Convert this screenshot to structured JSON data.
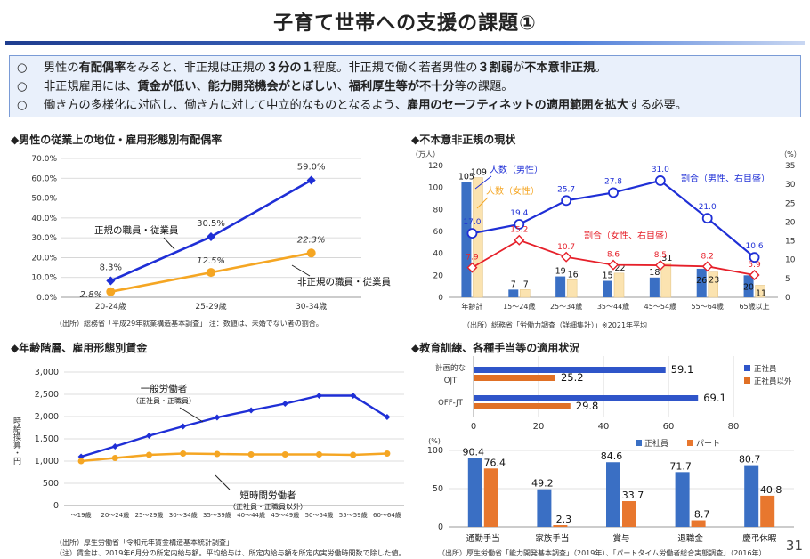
{
  "page": {
    "title": "子育て世帯への支援の課題①",
    "page_number": "31"
  },
  "summary": {
    "bullet": "○",
    "line1": [
      {
        "t": "男性の",
        "b": false
      },
      {
        "t": "有配偶率",
        "b": true
      },
      {
        "t": "をみると、非正規は正規の",
        "b": false
      },
      {
        "t": "３分の１",
        "b": true
      },
      {
        "t": "程度。非正規で働く若者男性の",
        "b": false
      },
      {
        "t": "３割弱",
        "b": true
      },
      {
        "t": "が",
        "b": false
      },
      {
        "t": "不本意非正規",
        "b": true
      },
      {
        "t": "。",
        "b": false
      }
    ],
    "line2": [
      {
        "t": "非正規雇用には、",
        "b": false
      },
      {
        "t": "賃金が低い",
        "b": true
      },
      {
        "t": "、",
        "b": false
      },
      {
        "t": "能力開発機会がとぼしい",
        "b": true
      },
      {
        "t": "、",
        "b": false
      },
      {
        "t": "福利厚生等が不十分",
        "b": true
      },
      {
        "t": "等の課題。",
        "b": false
      }
    ],
    "line3": [
      {
        "t": "働き方の多様化に対応し、働き方に対して中立的なものとなるよう、",
        "b": false
      },
      {
        "t": "雇用のセーフティネットの適用範囲を拡大",
        "b": true
      },
      {
        "t": "する必要。",
        "b": false
      }
    ]
  },
  "sections": {
    "marriage": {
      "heading": "◆男性の従業上の地位・雇用形態別有配偶率",
      "source": "（出所）総務省「平成29年就業構造基本調査」 注：数値は、未婚でない者の割合。"
    },
    "involuntary": {
      "heading": "◆不本意非正規の現状",
      "source": "（出所）総務省「労働力調査（詳細集計）」※2021年平均"
    },
    "wages": {
      "heading": "◆年齢階層、雇用形態別賃金",
      "source1": "（出所）厚生労働省「令和元年賃金構造基本統計調査」",
      "source2": "（注）賃金は、2019年6月分の所定内給与額。平均給与は、所定内給与額を所定内実労働時間数で除した値。"
    },
    "training": {
      "heading": "◆教育訓練、各種手当等の適用状況",
      "source": "（出所）厚生労働省「能力開発基本調査」（2019年）、「パートタイム労働者総合実態調査」（2016年）"
    }
  },
  "chart_data": [
    {
      "type": "line",
      "id": "marriage_rate",
      "categories": [
        "20-24歳",
        "25-29歳",
        "30-34歳"
      ],
      "ylim": [
        0,
        70
      ],
      "yticks": [
        "0.0%",
        "10.0%",
        "20.0%",
        "30.0%",
        "40.0%",
        "50.0%",
        "60.0%",
        "70.0%"
      ],
      "series": [
        {
          "name": "正規の職員・従業員",
          "values": [
            8.3,
            30.5,
            59.0
          ],
          "labels": [
            "8.3%",
            "30.5%",
            "59.0%"
          ],
          "color": "#1f2fd6"
        },
        {
          "name": "非正規の職員・従業員",
          "values": [
            2.8,
            12.5,
            22.3
          ],
          "labels": [
            "2.8%",
            "12.5%",
            "22.3%"
          ],
          "color": "#f5a623"
        }
      ]
    },
    {
      "type": "bar",
      "id": "involuntary_nonregular",
      "y_unit_left": "（万人）",
      "y_unit_right": "（%）",
      "categories": [
        "年齢計",
        "15～24歳",
        "25～34歳",
        "35～44歳",
        "45～54歳",
        "55～64歳",
        "65歳以上"
      ],
      "ylim_left": [
        0,
        120
      ],
      "yticks_left": [
        "0",
        "20",
        "40",
        "60",
        "80",
        "100",
        "120"
      ],
      "ylim_right": [
        0,
        35
      ],
      "yticks_right": [
        "0",
        "5",
        "10",
        "15",
        "20",
        "25",
        "30",
        "35"
      ],
      "series": [
        {
          "name": "人数（男性）",
          "axis": "left",
          "kind": "bar",
          "values": [
            105,
            7,
            19,
            15,
            18,
            26,
            20
          ],
          "labels": [
            "105",
            "7",
            "19",
            "15",
            "18",
            "26",
            "20"
          ],
          "color": "#3a6fc4"
        },
        {
          "name": "人数（女性）",
          "axis": "left",
          "kind": "bar",
          "values": [
            109,
            7,
            16,
            22,
            31,
            23,
            11
          ],
          "labels": [
            "109",
            "7",
            "16",
            "22",
            "31",
            "23",
            "11"
          ],
          "color": "#fbe3b0"
        },
        {
          "name": "割合（男性、右目盛）",
          "axis": "right",
          "kind": "line",
          "values": [
            17.0,
            19.4,
            25.7,
            27.8,
            31.0,
            21.0,
            10.6
          ],
          "labels": [
            "17.0",
            "19.4",
            "25.7",
            "27.8",
            "31.0",
            "21.0",
            "10.6"
          ],
          "color": "#1f2fd6"
        },
        {
          "name": "割合（女性、右目盛）",
          "axis": "right",
          "kind": "line",
          "values": [
            7.9,
            15.2,
            10.7,
            8.6,
            8.5,
            8.2,
            5.9
          ],
          "labels": [
            "7.9",
            "15.2",
            "10.7",
            "8.6",
            "8.5",
            "8.2",
            "5.9"
          ],
          "color": "#e6202a"
        }
      ]
    },
    {
      "type": "line",
      "id": "wages",
      "ylabel": "時給換算・円",
      "categories": [
        "～19歳",
        "20～24歳",
        "25～29歳",
        "30～34歳",
        "35～39歳",
        "40～44歳",
        "45～49歳",
        "50～54歳",
        "55～59歳",
        "60～64歳"
      ],
      "ylim": [
        0,
        3000
      ],
      "yticks": [
        "0",
        "500",
        "1,000",
        "1,500",
        "2,000",
        "2,500",
        "3,000"
      ],
      "series": [
        {
          "name": "一般労働者",
          "note": "（正社員・正職員）",
          "values": [
            1100,
            1330,
            1570,
            1780,
            1980,
            2140,
            2290,
            2470,
            2470,
            1990
          ],
          "color": "#1f2fd6"
        },
        {
          "name": "短時間労働者",
          "note": "（正社員・正職員以外）",
          "values": [
            1000,
            1070,
            1140,
            1170,
            1160,
            1150,
            1150,
            1150,
            1140,
            1170
          ],
          "color": "#f5a623"
        }
      ]
    },
    {
      "type": "bar",
      "orientation": "horizontal",
      "id": "training",
      "categories": [
        "計画的な OJT",
        "OFF-JT"
      ],
      "category_lines": [
        [
          "計画的な",
          "OJT"
        ],
        [
          "OFF-JT"
        ]
      ],
      "xlim": [
        0,
        80
      ],
      "xticks": [
        "0",
        "20",
        "40",
        "60",
        "80"
      ],
      "series": [
        {
          "name": "正社員",
          "values": [
            59.1,
            69.1
          ],
          "labels": [
            "59.1",
            "69.1"
          ],
          "color": "#2f55c9"
        },
        {
          "name": "正社員以外",
          "values": [
            25.2,
            29.8
          ],
          "labels": [
            "25.2",
            "29.8"
          ],
          "color": "#e07025"
        }
      ]
    },
    {
      "type": "bar",
      "id": "allowances",
      "y_unit": "(%)",
      "categories": [
        "通勤手当",
        "家族手当",
        "賞与",
        "退職金",
        "慶弔休暇"
      ],
      "ylim": [
        0,
        100
      ],
      "yticks": [
        "0",
        "50",
        "100"
      ],
      "series": [
        {
          "name": "正社員",
          "values": [
            90.4,
            49.2,
            84.6,
            71.7,
            80.7
          ],
          "labels": [
            "90.4",
            "49.2",
            "84.6",
            "71.7",
            "80.7"
          ],
          "color": "#3a6fc4"
        },
        {
          "name": "パート",
          "values": [
            76.4,
            2.3,
            33.7,
            8.7,
            40.8
          ],
          "labels": [
            "76.4",
            "2.3",
            "33.7",
            "8.7",
            "40.8"
          ],
          "color": "#e8772e"
        }
      ]
    }
  ]
}
